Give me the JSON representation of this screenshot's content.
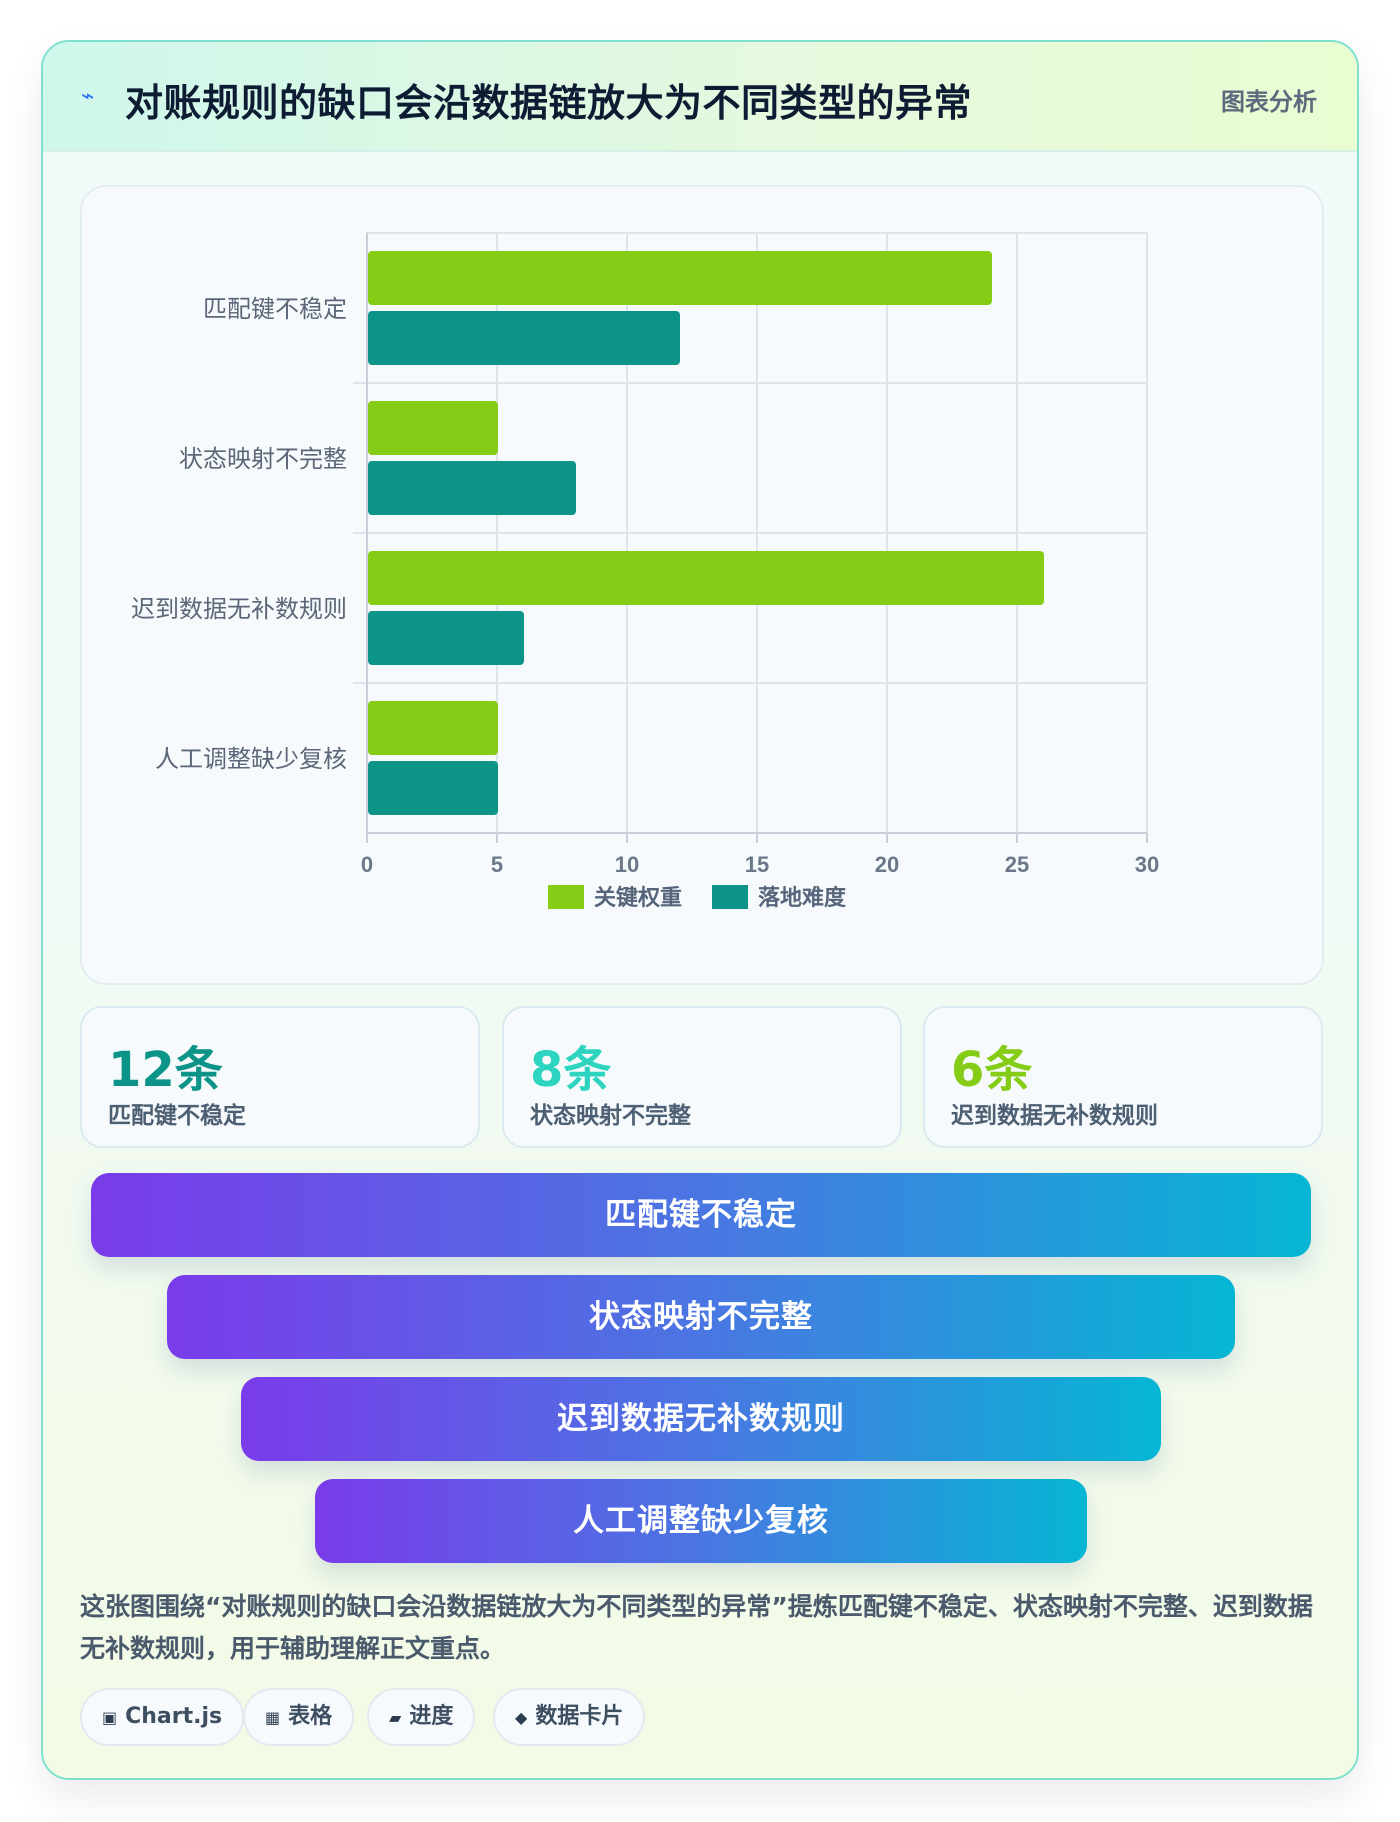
{
  "header": {
    "icon": "lightning-icon",
    "title": "对账规则的缺口会沿数据链放大为不同类型的异常",
    "tag": "图表分析"
  },
  "chart_data": {
    "type": "bar",
    "orientation": "horizontal",
    "categories": [
      "匹配键不稳定",
      "状态映射不完整",
      "迟到数据无补数规则",
      "人工调整缺少复核"
    ],
    "series": [
      {
        "name": "关键权重",
        "color": "#84cc16",
        "values": [
          24,
          5,
          26,
          5
        ]
      },
      {
        "name": "落地难度",
        "color": "#0d9488",
        "values": [
          12,
          8,
          6,
          5
        ]
      }
    ],
    "xlim": [
      0,
      30
    ],
    "xticks": [
      "0",
      "5",
      "10",
      "15",
      "20",
      "25",
      "30"
    ],
    "grid": true,
    "legend_position": "bottom"
  },
  "stats": [
    {
      "value": "12条",
      "label": "匹配键不稳定",
      "color": "#0d9488"
    },
    {
      "value": "8条",
      "label": "状态映射不完整",
      "color": "#2dd4bf"
    },
    {
      "value": "6条",
      "label": "迟到数据无补数规则",
      "color": "#84cc16"
    }
  ],
  "funnel": [
    "匹配键不稳定",
    "状态映射不完整",
    "迟到数据无补数规则",
    "人工调整缺少复核"
  ],
  "description": "这张图围绕“对账规则的缺口会沿数据链放大为不同类型的异常”提炼匹配键不稳定、状态映射不完整、迟到数据无补数规则，用于辅助理解正文重点。",
  "chips": [
    {
      "icon": "▣",
      "label": "Chart.js"
    },
    {
      "icon": "▦",
      "label": "表格"
    },
    {
      "icon": "▰",
      "label": "进度"
    },
    {
      "icon": "◆",
      "label": "数据卡片"
    }
  ]
}
